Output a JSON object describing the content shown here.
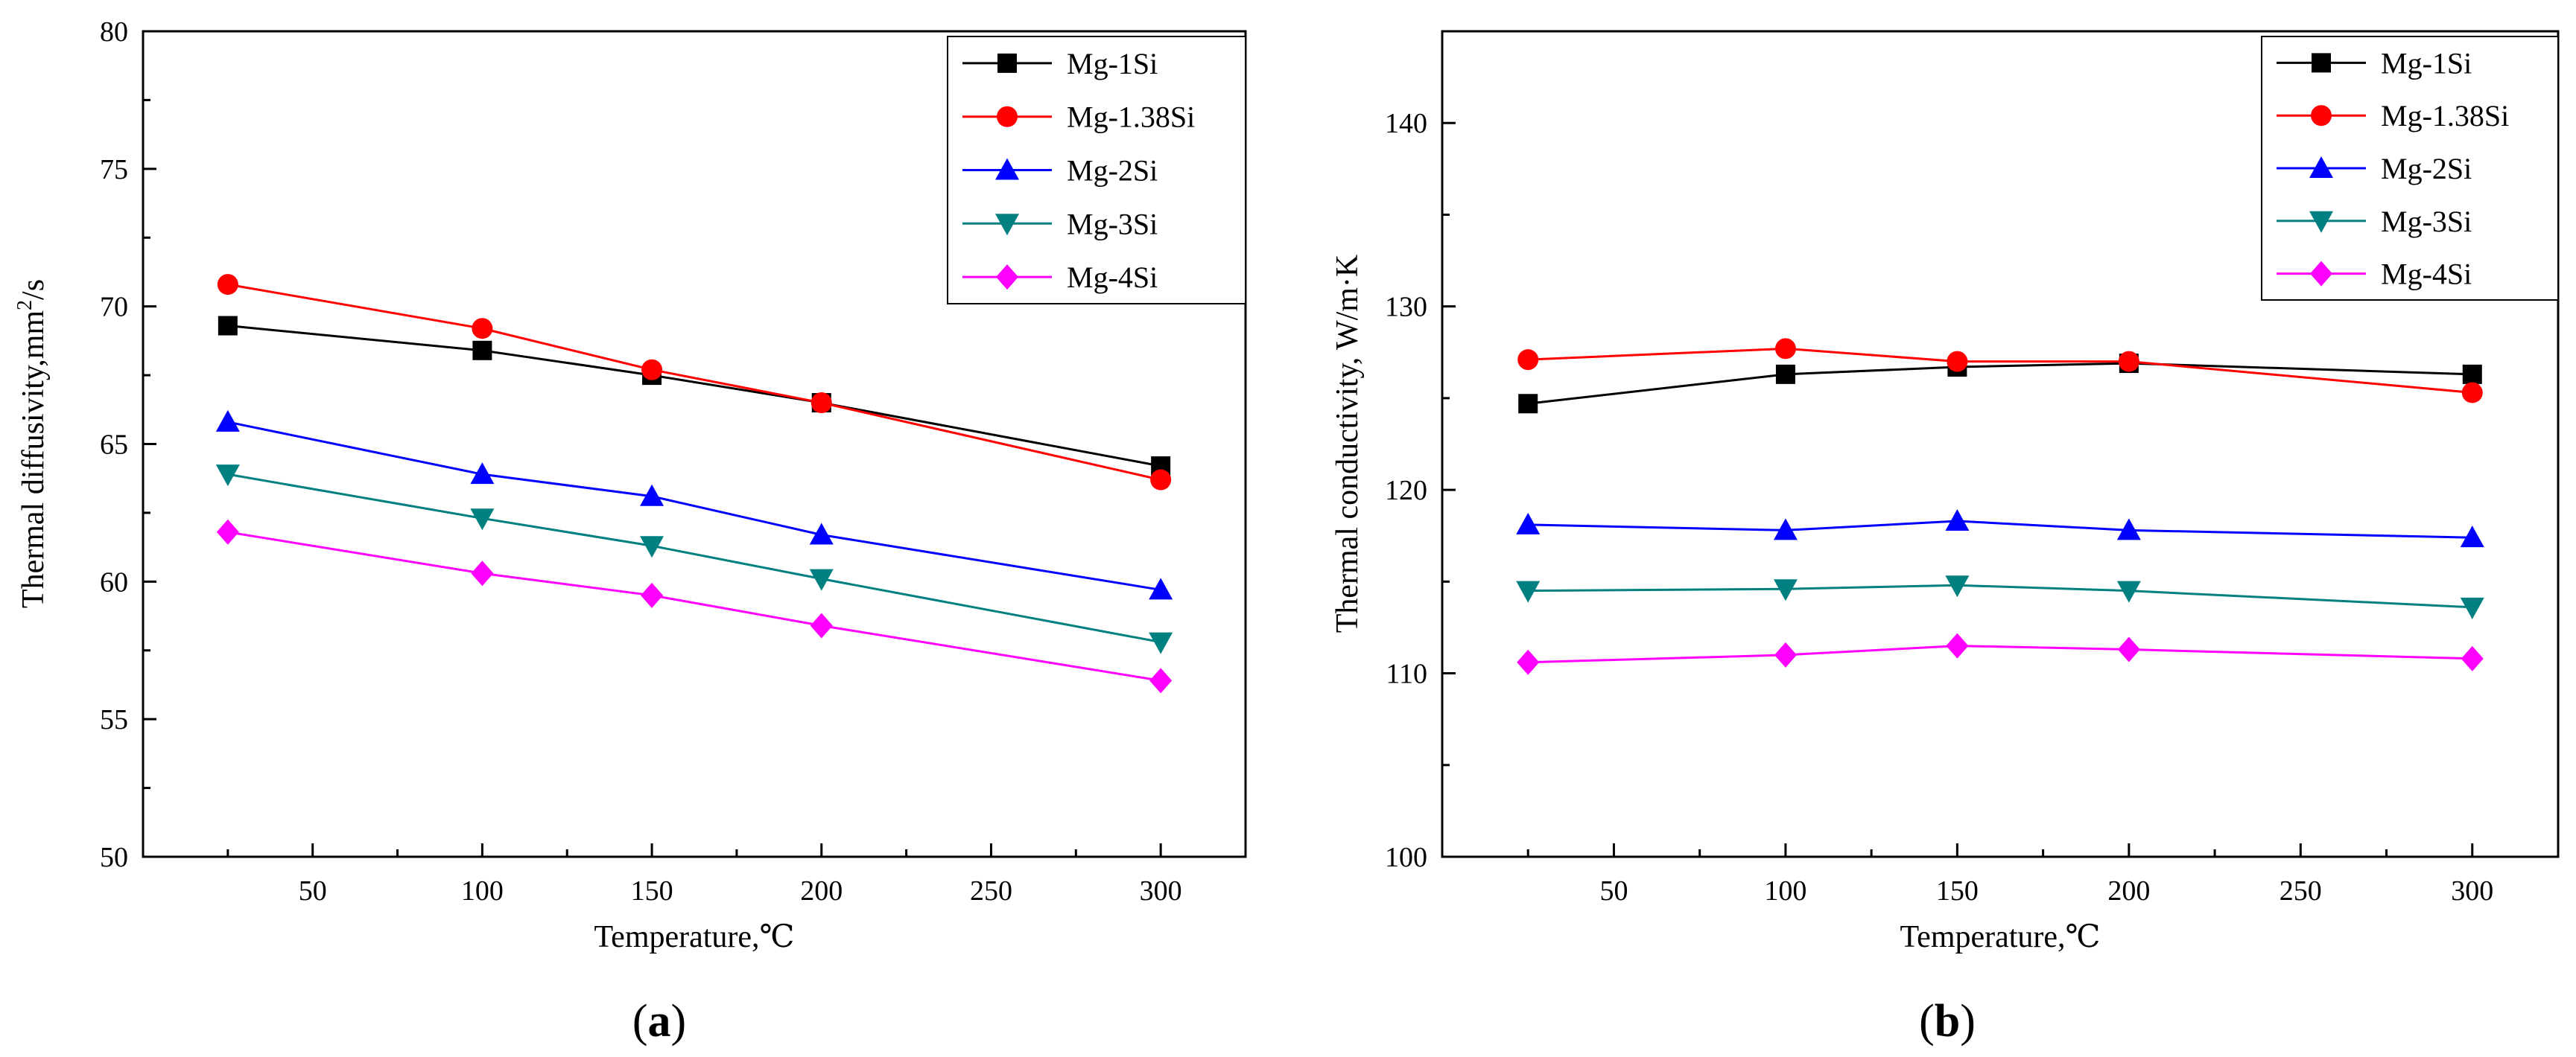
{
  "chart_data": [
    {
      "type": "line",
      "panel_label": "a",
      "title": "",
      "xlabel": "Temperature,℃",
      "ylabel": "Thermal diffusivity,mm²/s",
      "ylabel_parts": {
        "main": "Thermal diffusivity,mm",
        "sup": "2",
        "tail": "/s"
      },
      "xlim": [
        0,
        325
      ],
      "ylim": [
        50,
        80
      ],
      "xticks": [
        50,
        100,
        150,
        200,
        250,
        300
      ],
      "yticks": [
        50,
        55,
        60,
        65,
        70,
        75,
        80
      ],
      "grid": false,
      "legend_position": "top-right",
      "x": [
        25,
        100,
        150,
        200,
        300
      ],
      "series": [
        {
          "name": "Mg-1Si",
          "color": "#000000",
          "marker": "square",
          "values": [
            69.3,
            68.4,
            67.5,
            66.5,
            64.2
          ]
        },
        {
          "name": "Mg-1.38Si",
          "color": "#ff0000",
          "marker": "circle",
          "values": [
            70.8,
            69.2,
            67.7,
            66.5,
            63.7
          ]
        },
        {
          "name": "Mg-2Si",
          "color": "#0000ff",
          "marker": "triangle-up",
          "values": [
            65.8,
            63.9,
            63.1,
            61.7,
            59.7
          ]
        },
        {
          "name": "Mg-3Si",
          "color": "#008080",
          "marker": "triangle-down",
          "values": [
            63.9,
            62.3,
            61.3,
            60.1,
            57.8
          ]
        },
        {
          "name": "Mg-4Si",
          "color": "#ff00ff",
          "marker": "diamond",
          "values": [
            61.8,
            60.3,
            59.5,
            58.4,
            56.4
          ]
        }
      ]
    },
    {
      "type": "line",
      "panel_label": "b",
      "title": "",
      "xlabel": "Temperature,℃",
      "ylabel": "Thermal conductivity, W/m·K",
      "xlim": [
        0,
        325
      ],
      "ylim": [
        100,
        145
      ],
      "xticks": [
        50,
        100,
        150,
        200,
        250,
        300
      ],
      "yticks": [
        100,
        110,
        120,
        130,
        140
      ],
      "grid": false,
      "legend_position": "top-right",
      "x": [
        25,
        100,
        150,
        200,
        300
      ],
      "series": [
        {
          "name": "Mg-1Si",
          "color": "#000000",
          "marker": "square",
          "values": [
            124.7,
            126.3,
            126.7,
            126.9,
            126.3
          ]
        },
        {
          "name": "Mg-1.38Si",
          "color": "#ff0000",
          "marker": "circle",
          "values": [
            127.1,
            127.7,
            127.0,
            127.0,
            125.3
          ]
        },
        {
          "name": "Mg-2Si",
          "color": "#0000ff",
          "marker": "triangle-up",
          "values": [
            118.1,
            117.8,
            118.3,
            117.8,
            117.4
          ]
        },
        {
          "name": "Mg-3Si",
          "color": "#008080",
          "marker": "triangle-down",
          "values": [
            114.5,
            114.6,
            114.8,
            114.5,
            113.6
          ]
        },
        {
          "name": "Mg-4Si",
          "color": "#ff00ff",
          "marker": "diamond",
          "values": [
            110.6,
            111.0,
            111.5,
            111.3,
            110.8
          ]
        }
      ]
    }
  ]
}
